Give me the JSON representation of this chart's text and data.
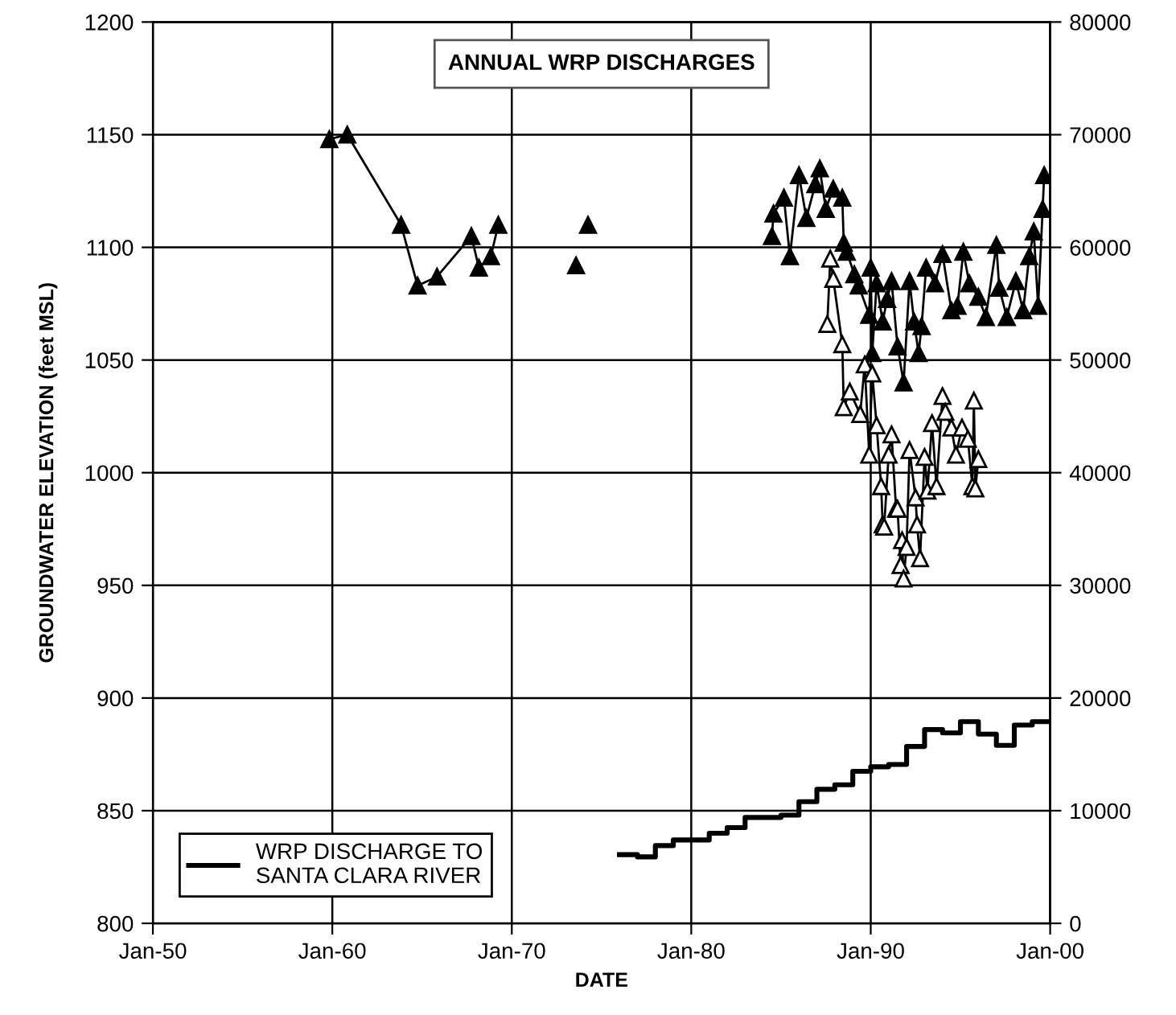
{
  "chart_data": {
    "type": "line",
    "title": "ANNUAL WRP DISCHARGES",
    "xlabel": "DATE",
    "ylabel": "GROUNDWATER ELEVATION (feet MSL)",
    "xlim": [
      "1950-01",
      "2000-01"
    ],
    "xticks": [
      {
        "value": "1950-01",
        "label": "Jan-50"
      },
      {
        "value": "1960-01",
        "label": "Jan-60"
      },
      {
        "value": "1970-01",
        "label": "Jan-70"
      },
      {
        "value": "1980-01",
        "label": "Jan-80"
      },
      {
        "value": "1990-01",
        "label": "Jan-90"
      },
      {
        "value": "2000-01",
        "label": "Jan-00"
      }
    ],
    "ylim": [
      800,
      1200
    ],
    "yticks": [
      800,
      850,
      900,
      950,
      1000,
      1050,
      1100,
      1150,
      1200
    ],
    "y2lim": [
      0,
      80000
    ],
    "y2ticks": [
      0,
      10000,
      20000,
      30000,
      40000,
      50000,
      60000,
      70000,
      80000
    ],
    "grid": true,
    "legend": "bottom left",
    "marker": "triangle",
    "line_style": "solid",
    "series": [
      {
        "color": "#000000",
        "x": [
          "1959-11",
          "1960-11",
          "1963-11",
          "1964-10",
          "1965-11",
          "1967-10",
          "1968-03",
          "1968-11",
          "1969-04",
          "1971-01",
          "1973-08",
          "1973-11",
          "1974-04",
          "1979-01",
          "1984-07",
          "1984-08",
          "1985-03",
          "1985-07",
          "1986-01",
          "1986-06",
          "1986-12",
          "1987-03",
          "1987-07",
          "1987-12",
          "1988-06",
          "1988-07",
          "1988-09",
          "1989-02",
          "1989-05",
          "1989-12",
          "1990-01",
          "1990-02",
          "1990-05",
          "1990-09",
          "1990-12",
          "1991-03",
          "1991-07",
          "1991-11",
          "1992-03",
          "1992-06",
          "1992-09",
          "1992-11",
          "1993-02",
          "1993-08",
          "1994-01",
          "1994-07",
          "1994-11",
          "1995-03",
          "1995-07",
          "1996-01",
          "1996-06",
          "1997-01",
          "1997-03",
          "1997-08",
          "1998-02",
          "1998-07",
          "1998-11",
          "1999-02",
          "1999-05",
          "1999-08",
          "1999-09"
        ],
        "values": [
          1148,
          1150,
          1110,
          1083,
          1087,
          1105,
          1091,
          1096,
          1110,
          null,
          1092,
          null,
          1110,
          null,
          1105,
          1115,
          1122,
          1096,
          1132,
          1113,
          1128,
          1135,
          1117,
          1126,
          1122,
          1102,
          1098,
          1088,
          1083,
          1070,
          1091,
          1053,
          1084,
          1067,
          1077,
          1085,
          1056,
          1040,
          1085,
          1067,
          1053,
          1065,
          1091,
          1084,
          1097,
          1072,
          1074,
          1098,
          1084,
          1078,
          1069,
          1101,
          1082,
          1069,
          1085,
          1072,
          1096,
          1107,
          1074,
          1117,
          1132
        ]
      },
      {
        "color": "#ffffff",
        "x": [
          "1987-08",
          "1987-10",
          "1987-12",
          "1988-06",
          "1988-07",
          "1988-11",
          "1989-06",
          "1989-09",
          "1989-12",
          "1990-02",
          "1990-05",
          "1990-08",
          "1990-09",
          "1990-10",
          "1991-01",
          "1991-03",
          "1991-06",
          "1991-07",
          "1991-09",
          "1991-10",
          "1991-11",
          "1992-01",
          "1992-03",
          "1992-07",
          "1992-08",
          "1992-10",
          "1993-01",
          "1993-03",
          "1993-06",
          "1993-09",
          "1994-01",
          "1994-03",
          "1994-07",
          "1994-10",
          "1995-02",
          "1995-06",
          "1995-09",
          "1995-10",
          "1995-11",
          "1996-01"
        ],
        "values": [
          1066,
          1095,
          1086,
          1057,
          1029,
          1036,
          1026,
          1048,
          1008,
          1044,
          1021,
          994,
          977,
          976,
          1008,
          1017,
          984,
          984,
          959,
          970,
          953,
          967,
          1010,
          989,
          977,
          962,
          1007,
          992,
          1022,
          994,
          1034,
          1027,
          1020,
          1008,
          1020,
          1015,
          994,
          1032,
          993,
          1006
        ]
      },
      {
        "name": "WRP DISCHARGE TO\nSANTA CLARA RIVER",
        "type": "step",
        "axis": "y2",
        "marker": "none",
        "color": "#000000",
        "x": [
          "1976-01",
          "1977-01",
          "1978-01",
          "1979-01",
          "1980-01",
          "1981-01",
          "1982-01",
          "1983-01",
          "1985-01",
          "1986-01",
          "1987-01",
          "1988-01",
          "1989-01",
          "1990-01",
          "1991-01",
          "1992-01",
          "1993-01",
          "1994-01",
          "1995-01",
          "1996-01",
          "1997-01",
          "1998-01",
          "1999-01",
          "2000-01"
        ],
        "values": [
          6100,
          5900,
          6900,
          7400,
          7400,
          8000,
          8500,
          9400,
          9600,
          10800,
          11900,
          12300,
          13500,
          13900,
          14100,
          15700,
          17200,
          16900,
          17900,
          16800,
          15800,
          17600,
          17900,
          17900
        ]
      }
    ]
  }
}
